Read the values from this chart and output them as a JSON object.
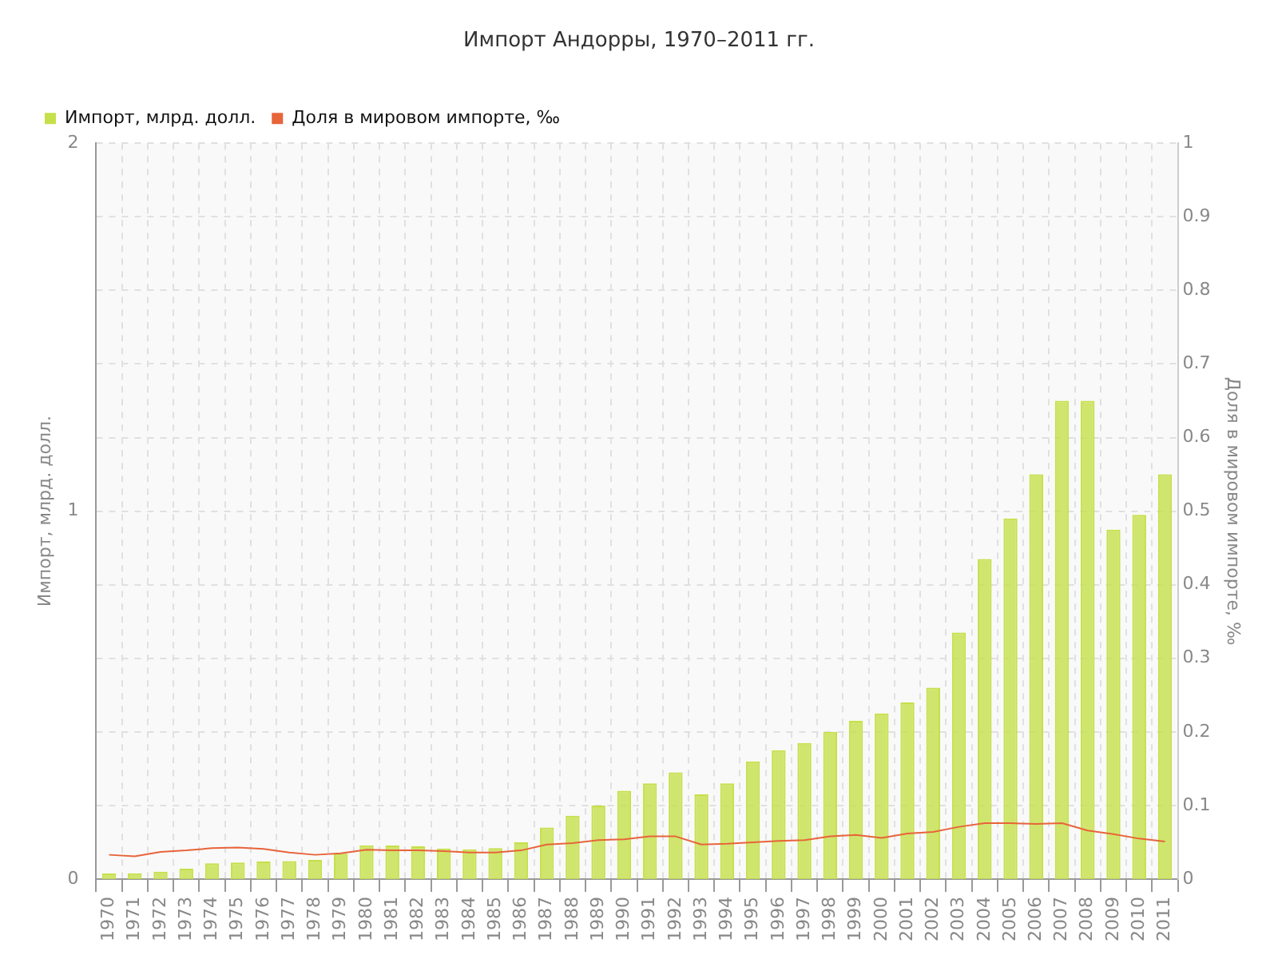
{
  "chart_data": {
    "type": "bar",
    "title": "Импорт Андорры, 1970–2011 гг.",
    "ylabel": "Импорт, млрд. долл.",
    "y2label": "Доля в мировом импорте, ‰",
    "categories": [
      "1970",
      "1971",
      "1972",
      "1973",
      "1974",
      "1975",
      "1976",
      "1977",
      "1978",
      "1979",
      "1980",
      "1981",
      "1982",
      "1983",
      "1984",
      "1985",
      "1986",
      "1987",
      "1988",
      "1989",
      "1990",
      "1991",
      "1992",
      "1993",
      "1994",
      "1995",
      "1996",
      "1997",
      "1998",
      "1999",
      "2000",
      "2001",
      "2002",
      "2003",
      "2004",
      "2005",
      "2006",
      "2007",
      "2008",
      "2009",
      "2010",
      "2011"
    ],
    "series": [
      {
        "name": "Импорт, млрд. долл.",
        "color": "#c5e04a",
        "values": [
          0.015,
          0.016,
          0.02,
          0.028,
          0.043,
          0.045,
          0.048,
          0.049,
          0.052,
          0.069,
          0.092,
          0.091,
          0.089,
          0.083,
          0.081,
          0.084,
          0.1,
          0.14,
          0.172,
          0.2,
          0.24,
          0.26,
          0.29,
          0.23,
          0.26,
          0.32,
          0.35,
          0.37,
          0.4,
          0.43,
          0.45,
          0.48,
          0.52,
          0.67,
          0.87,
          0.98,
          1.1,
          1.3,
          1.3,
          0.95,
          0.99,
          1.1
        ]
      },
      {
        "name": "Доля в мировом импорте, ‰",
        "type": "line",
        "axis": "y2",
        "color": "#e8643a",
        "values": [
          0.033,
          0.031,
          0.037,
          0.039,
          0.042,
          0.043,
          0.041,
          0.036,
          0.033,
          0.035,
          0.04,
          0.039,
          0.039,
          0.038,
          0.036,
          0.036,
          0.039,
          0.047,
          0.049,
          0.053,
          0.054,
          0.058,
          0.058,
          0.047,
          0.048,
          0.05,
          0.052,
          0.053,
          0.058,
          0.06,
          0.056,
          0.062,
          0.064,
          0.071,
          0.076,
          0.076,
          0.075,
          0.076,
          0.066,
          0.061,
          0.055,
          0.051
        ]
      }
    ],
    "ylim": [
      0,
      2
    ],
    "yticks": [
      0,
      1,
      2
    ],
    "y2lim": [
      0,
      1
    ],
    "y2ticks": [
      0,
      0.1,
      0.2,
      0.3,
      0.4,
      0.5,
      0.6,
      0.7,
      0.8,
      0.9,
      1
    ],
    "grid": true,
    "legend": "top left",
    "marker": "none",
    "line_style": "solid"
  }
}
